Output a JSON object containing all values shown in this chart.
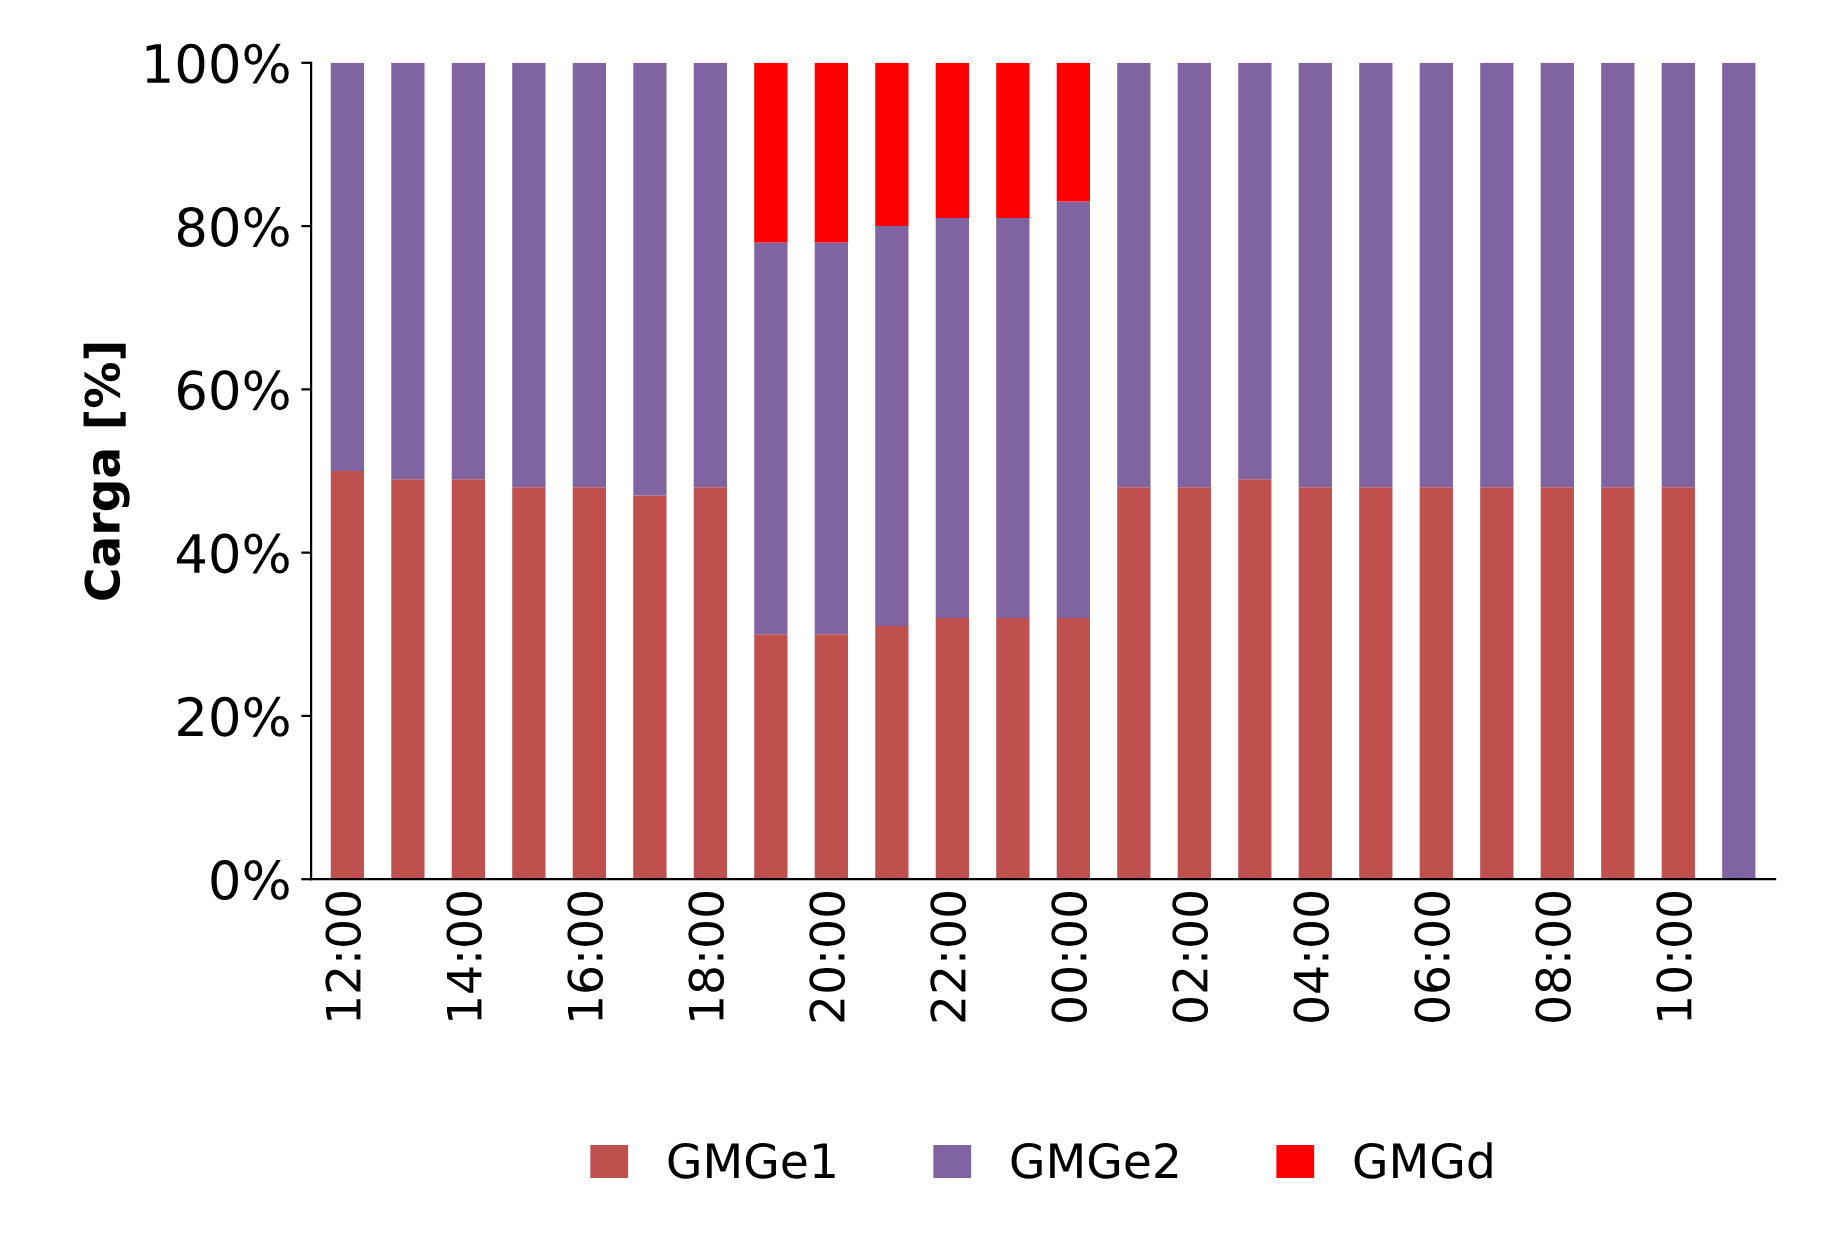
{
  "chart_data": {
    "type": "bar",
    "stacked": true,
    "ylabel": "Carga [%]",
    "categories": [
      "12:00",
      null,
      "14:00",
      null,
      "16:00",
      null,
      "18:00",
      null,
      "20:00",
      null,
      "22:00",
      null,
      "00:00",
      null,
      "02:00",
      null,
      "04:00",
      null,
      "06:00",
      null,
      "08:00",
      null,
      "10:00",
      null
    ],
    "series": [
      {
        "name": "GMGe1",
        "color": "#c0504d",
        "values": [
          50,
          49,
          49,
          48,
          48,
          47,
          48,
          30,
          30,
          31,
          32,
          32,
          32,
          48,
          48,
          49,
          48,
          48,
          48,
          48,
          48,
          48,
          48,
          0
        ]
      },
      {
        "name": "GMGe2",
        "color": "#8064a2",
        "values": [
          50,
          51,
          51,
          52,
          52,
          53,
          52,
          48,
          48,
          49,
          49,
          49,
          51,
          52,
          52,
          51,
          52,
          52,
          52,
          52,
          52,
          52,
          52,
          100
        ]
      },
      {
        "name": "GMGd",
        "color": "#ff0000",
        "values": [
          0,
          0,
          0,
          0,
          0,
          0,
          0,
          22,
          22,
          20,
          19,
          19,
          17,
          0,
          0,
          0,
          0,
          0,
          0,
          0,
          0,
          0,
          0,
          0
        ]
      }
    ],
    "ylim": [
      0,
      100
    ],
    "yticks": [
      {
        "value": 0,
        "label": "0%"
      },
      {
        "value": 20,
        "label": "20%"
      },
      {
        "value": 40,
        "label": "40%"
      },
      {
        "value": 60,
        "label": "60%"
      },
      {
        "value": 80,
        "label": "80%"
      },
      {
        "value": 100,
        "label": "100%"
      }
    ],
    "grid": false,
    "legend": "bottom"
  }
}
